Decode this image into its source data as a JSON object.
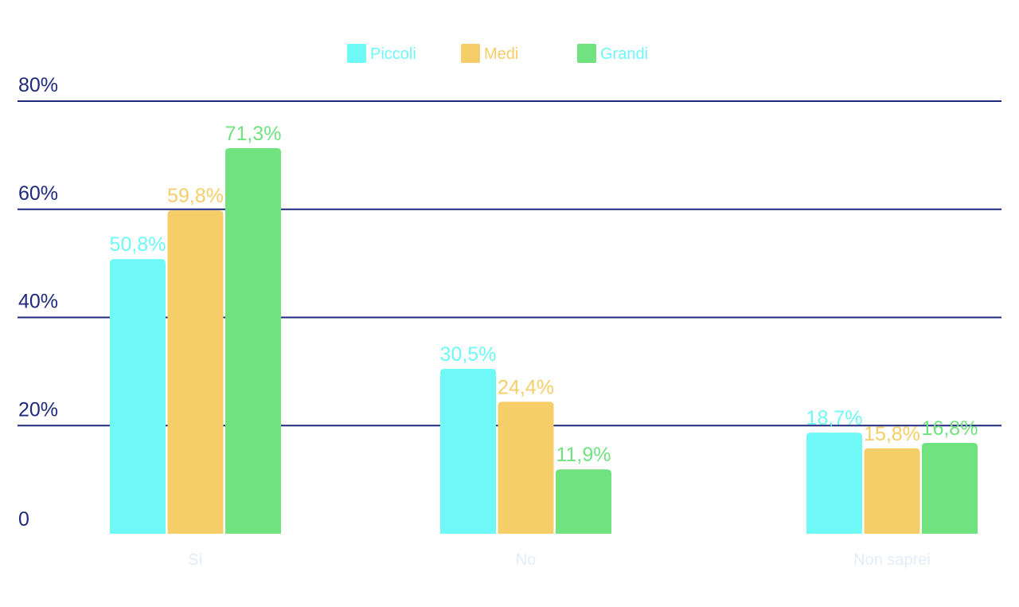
{
  "chart_data": {
    "type": "bar",
    "title": "",
    "xlabel": "",
    "ylabel": "",
    "categories": [
      "Sì",
      "No",
      "Non saprei"
    ],
    "series": [
      {
        "name": "Piccoli",
        "color": "#6ef8f6",
        "values": [
          50.8,
          30.5,
          18.7
        ],
        "labels": [
          "50,8%",
          "30,5%",
          "18,7%"
        ]
      },
      {
        "name": "Medi",
        "color": "#f6ce69",
        "values": [
          59.8,
          24.4,
          15.8
        ],
        "labels": [
          "59,8%",
          "24,4%",
          "15,8%"
        ]
      },
      {
        "name": "Grandi",
        "color": "#70e280",
        "values": [
          71.3,
          11.9,
          16.8
        ],
        "labels": [
          "71,3%",
          "11,9%",
          "16,8%"
        ]
      }
    ],
    "ylim": [
      0,
      80
    ],
    "yticks": [
      0,
      20,
      40,
      60,
      80
    ],
    "ytick_labels": [
      "0",
      "20%",
      "40%",
      "60%",
      "80%"
    ],
    "grid": true,
    "legend_position": "top-center",
    "colors": {
      "axis_text": "#1f2a7a",
      "gridline": "#1f2a7a",
      "category_text": "#e4edf5",
      "legend_text_piccoli": "#6ef8f6",
      "legend_text_medi": "#f6ce69",
      "legend_text_grandi": "#6ef8f6"
    }
  }
}
